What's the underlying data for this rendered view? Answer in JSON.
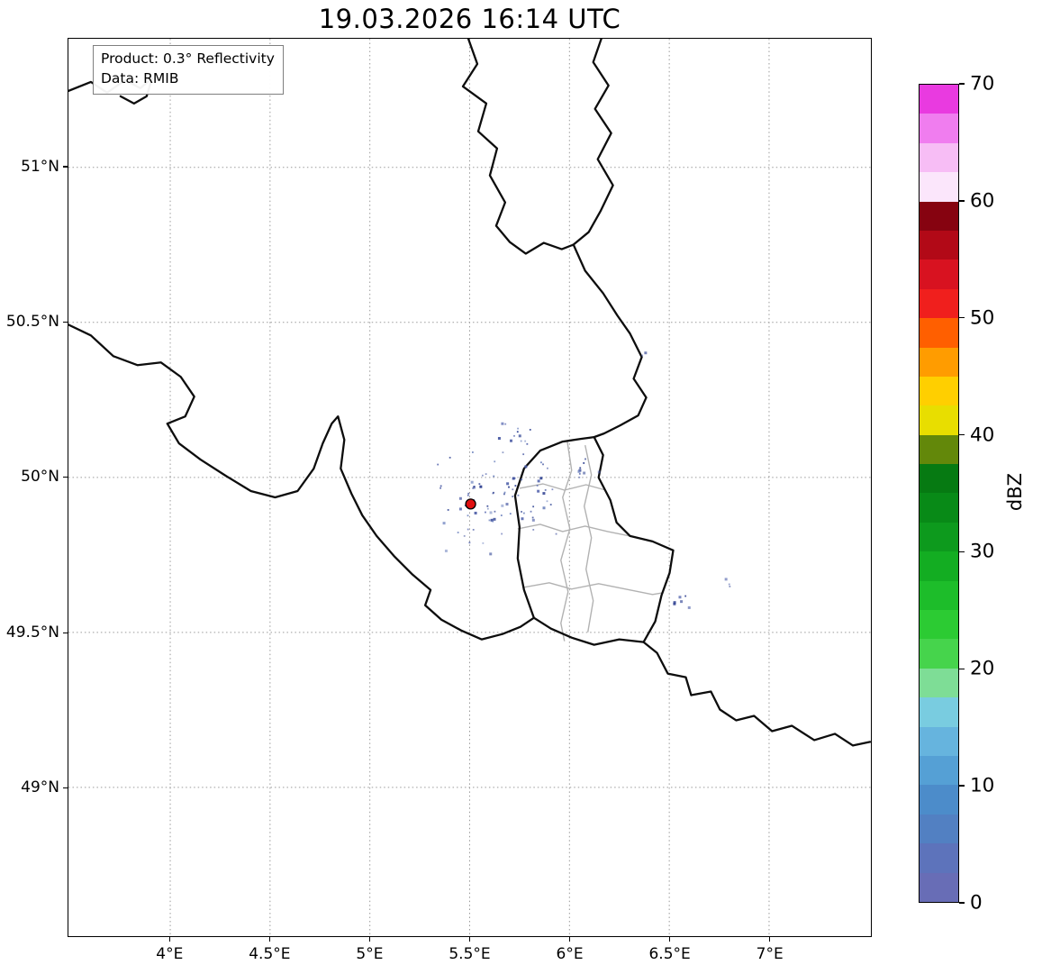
{
  "title": "19.03.2026 16:14 UTC",
  "info_box": {
    "line1": "Product: 0.3° Reflectivity",
    "line2": "Data: RMIB"
  },
  "map": {
    "extent": {
      "lon_min": 3.49,
      "lon_max": 7.51,
      "lat_min": 48.52,
      "lat_max": 51.415
    },
    "x_ticks": [
      {
        "lon": 4.0,
        "label": "4°E"
      },
      {
        "lon": 4.5,
        "label": "4.5°E"
      },
      {
        "lon": 5.0,
        "label": "5°E"
      },
      {
        "lon": 5.5,
        "label": "5.5°E"
      },
      {
        "lon": 6.0,
        "label": "6°E"
      },
      {
        "lon": 6.5,
        "label": "6.5°E"
      },
      {
        "lon": 7.0,
        "label": "7°E"
      }
    ],
    "y_ticks": [
      {
        "lat": 51.0,
        "label": "51°N"
      },
      {
        "lat": 50.5,
        "label": "50.5°N"
      },
      {
        "lat": 50.0,
        "label": "50°N"
      },
      {
        "lat": 49.5,
        "label": "49.5°N"
      },
      {
        "lat": 49.0,
        "label": "49°N"
      }
    ],
    "radar_site": {
      "lon": 5.505,
      "lat": 49.914,
      "color": "#e01010"
    },
    "echoes": {
      "seed": 7,
      "colors": [
        "#3a4c9c",
        "#46589f",
        "#2e4090",
        "#5a6ab0",
        "#7186c0"
      ],
      "clusters": [
        {
          "lon": 5.62,
          "lat": 49.93,
          "dlon": 0.42,
          "dlat": 0.21,
          "n": 85
        },
        {
          "lon": 5.72,
          "lat": 50.12,
          "dlon": 0.16,
          "dlat": 0.1,
          "n": 14
        },
        {
          "lon": 6.07,
          "lat": 50.03,
          "dlon": 0.1,
          "dlat": 0.07,
          "n": 9
        },
        {
          "lon": 6.55,
          "lat": 49.6,
          "dlon": 0.08,
          "dlat": 0.05,
          "n": 6
        },
        {
          "lon": 6.8,
          "lat": 49.66,
          "dlon": 0.04,
          "dlat": 0.03,
          "n": 3
        },
        {
          "lon": 6.38,
          "lat": 50.4,
          "dlon": 0.03,
          "dlat": 0.02,
          "n": 2
        }
      ]
    }
  },
  "colorbar": {
    "label": "dBZ",
    "min": 0,
    "max": 70,
    "ticks": [
      0,
      10,
      20,
      30,
      40,
      50,
      60,
      70
    ],
    "colors_bottom_to_top": [
      "#686db6",
      "#5d73bb",
      "#5280c2",
      "#4c8cca",
      "#55a0d5",
      "#66b4de",
      "#79cce0",
      "#7edd96",
      "#46d44c",
      "#2ccb33",
      "#1dbd2a",
      "#13ad22",
      "#0d9a1d",
      "#088a17",
      "#067a12",
      "#63880a",
      "#e8de00",
      "#ffcf00",
      "#ff9c00",
      "#ff5f00",
      "#f01f1d",
      "#d81220",
      "#b20917",
      "#860310",
      "#fbe6fb",
      "#f7bdf5",
      "#f07def",
      "#e93ae0"
    ]
  }
}
